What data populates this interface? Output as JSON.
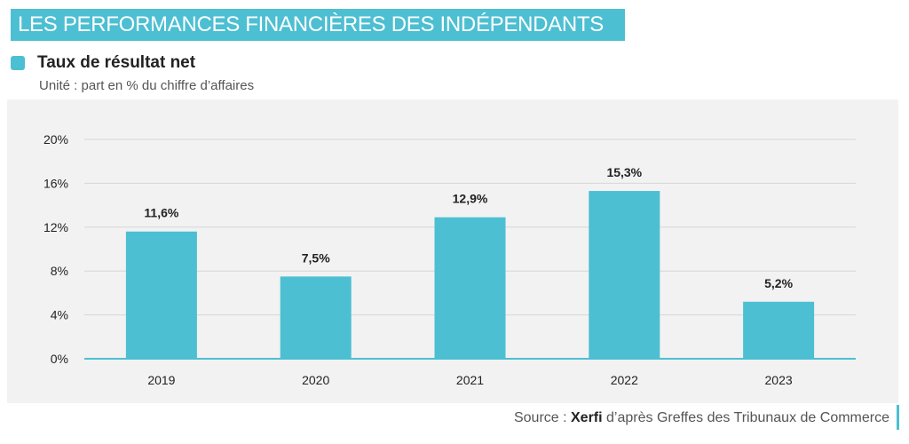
{
  "header": {
    "title": "LES PERFORMANCES FINANCIÈRES DES INDÉPENDANTS",
    "subtitle": "Taux de résultat net",
    "unit": "Unité : part en % du chiffre d’affaires"
  },
  "footer": {
    "source_prefix": "Source : ",
    "source_brand": "Xerfi",
    "source_rest": " d’après Greffes des Tribunaux de Commerce"
  },
  "colors": {
    "accent": "#4dbfd2",
    "bar": "#4dbfd2",
    "grid": "#d6d6d6",
    "axis": "#4dbfd2",
    "panel": "#f2f2f2"
  },
  "chart_data": {
    "type": "bar",
    "title": "Taux de résultat net",
    "xlabel": "",
    "ylabel": "",
    "categories": [
      "2019",
      "2020",
      "2021",
      "2022",
      "2023"
    ],
    "values": [
      11.6,
      7.5,
      12.9,
      15.3,
      5.2
    ],
    "value_labels": [
      "11,6%",
      "7,5%",
      "12,9%",
      "15,3%",
      "5,2%"
    ],
    "ylim": [
      0,
      20
    ],
    "yticks": [
      0,
      4,
      8,
      12,
      16,
      20
    ],
    "ytick_labels": [
      "0%",
      "4%",
      "8%",
      "12%",
      "16%",
      "20%"
    ],
    "grid": true
  }
}
